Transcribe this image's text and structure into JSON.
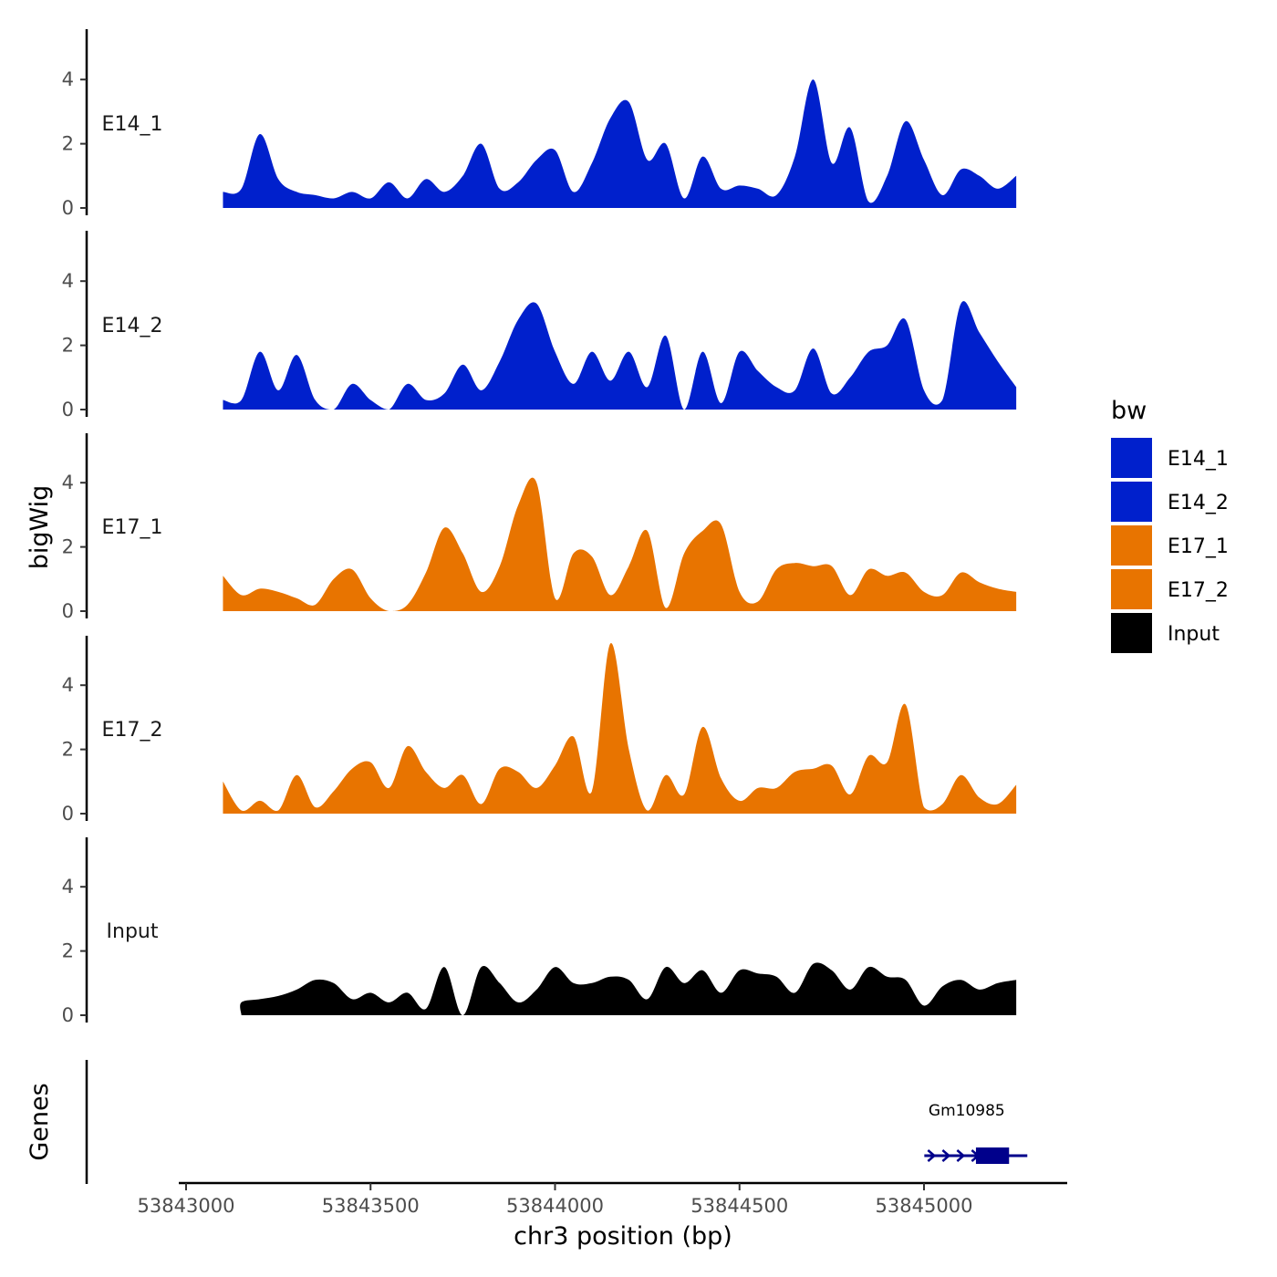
{
  "chart_data": {
    "type": "area",
    "title": "",
    "xlabel": "chr3 position (bp)",
    "ylabel": "bigWig",
    "genes_label": "Genes",
    "xlim": [
      53842970,
      53845390
    ],
    "ylim": [
      0,
      5.5
    ],
    "x_ticks": [
      53843000,
      53843500,
      53844000,
      53844500,
      53845000
    ],
    "x_tick_labels": [
      "53843000",
      "53843500",
      "53844000",
      "53844500",
      "53845000"
    ],
    "y_ticks": [
      0,
      2,
      4
    ],
    "y_tick_labels": [
      "0",
      "2",
      "4"
    ],
    "x": [
      53843100,
      53843150,
      53843200,
      53843250,
      53843300,
      53843350,
      53843400,
      53843450,
      53843500,
      53843550,
      53843600,
      53843650,
      53843700,
      53843750,
      53843800,
      53843850,
      53843900,
      53843950,
      53844000,
      53844050,
      53844100,
      53844150,
      53844200,
      53844250,
      53844300,
      53844350,
      53844400,
      53844450,
      53844500,
      53844550,
      53844600,
      53844650,
      53844700,
      53844750,
      53844800,
      53844850,
      53844900,
      53844950,
      53845000,
      53845050,
      53845100,
      53845150,
      53845200,
      53845250
    ],
    "legend": {
      "title": "bw",
      "entries": [
        {
          "label": "E14_1",
          "color": "#0020CC"
        },
        {
          "label": "E14_2",
          "color": "#0020CC"
        },
        {
          "label": "E17_1",
          "color": "#E87400"
        },
        {
          "label": "E17_2",
          "color": "#E87400"
        },
        {
          "label": "Input",
          "color": "#000000"
        }
      ]
    },
    "series": [
      {
        "name": "E14_1",
        "color": "#0020CC",
        "values": [
          0.5,
          0.6,
          2.3,
          0.9,
          0.5,
          0.4,
          0.3,
          0.5,
          0.3,
          0.8,
          0.3,
          0.9,
          0.5,
          1.0,
          2.0,
          0.6,
          0.8,
          1.5,
          1.8,
          0.5,
          1.4,
          2.8,
          3.3,
          1.5,
          2.0,
          0.3,
          1.6,
          0.6,
          0.7,
          0.6,
          0.4,
          1.6,
          4.0,
          1.4,
          2.5,
          0.2,
          1.0,
          2.7,
          1.5,
          0.4,
          1.2,
          1.0,
          0.6,
          1.0
        ]
      },
      {
        "name": "E14_2",
        "color": "#0020CC",
        "values": [
          0.3,
          0.3,
          1.8,
          0.6,
          1.7,
          0.3,
          0.0,
          0.8,
          0.3,
          0.0,
          0.8,
          0.3,
          0.5,
          1.4,
          0.6,
          1.5,
          2.8,
          3.3,
          1.8,
          0.8,
          1.8,
          0.9,
          1.8,
          0.7,
          2.3,
          0.0,
          1.8,
          0.2,
          1.8,
          1.2,
          0.7,
          0.6,
          1.9,
          0.5,
          1.0,
          1.8,
          2.0,
          2.8,
          0.6,
          0.3,
          3.3,
          2.4,
          1.5,
          0.7
        ]
      },
      {
        "name": "E17_1",
        "color": "#E87400",
        "values": [
          1.1,
          0.5,
          0.7,
          0.6,
          0.4,
          0.2,
          1.0,
          1.3,
          0.4,
          0.0,
          0.2,
          1.2,
          2.6,
          1.8,
          0.6,
          1.4,
          3.3,
          4.0,
          0.4,
          1.8,
          1.7,
          0.5,
          1.4,
          2.5,
          0.1,
          1.8,
          2.5,
          2.7,
          0.6,
          0.3,
          1.3,
          1.5,
          1.4,
          1.4,
          0.5,
          1.3,
          1.1,
          1.2,
          0.6,
          0.5,
          1.2,
          0.9,
          0.7,
          0.6
        ]
      },
      {
        "name": "E17_2",
        "color": "#E87400",
        "values": [
          1.0,
          0.1,
          0.4,
          0.1,
          1.2,
          0.2,
          0.7,
          1.4,
          1.6,
          0.8,
          2.1,
          1.3,
          0.8,
          1.2,
          0.3,
          1.4,
          1.3,
          0.8,
          1.5,
          2.4,
          0.7,
          5.3,
          2.0,
          0.1,
          1.2,
          0.6,
          2.7,
          1.1,
          0.4,
          0.8,
          0.8,
          1.3,
          1.4,
          1.5,
          0.6,
          1.8,
          1.6,
          3.4,
          0.2,
          0.3,
          1.2,
          0.5,
          0.3,
          0.9
        ]
      },
      {
        "name": "Input",
        "color": "#000000",
        "values": [
          0.0,
          0.4,
          0.5,
          0.6,
          0.8,
          1.1,
          1.0,
          0.5,
          0.7,
          0.4,
          0.7,
          0.2,
          1.5,
          0.0,
          1.5,
          1.0,
          0.4,
          0.8,
          1.5,
          1.0,
          1.0,
          1.2,
          1.1,
          0.5,
          1.5,
          1.0,
          1.4,
          0.7,
          1.4,
          1.3,
          1.2,
          0.7,
          1.6,
          1.4,
          0.8,
          1.5,
          1.2,
          1.1,
          0.3,
          0.9,
          1.1,
          0.8,
          1.0,
          1.1
        ]
      }
    ],
    "genes": [
      {
        "name": "Gm10985",
        "start": 53845080,
        "end": 53845280,
        "strand": "+",
        "exon_start": 53845210,
        "exon_end": 53845280,
        "color": "#00008B"
      }
    ]
  }
}
